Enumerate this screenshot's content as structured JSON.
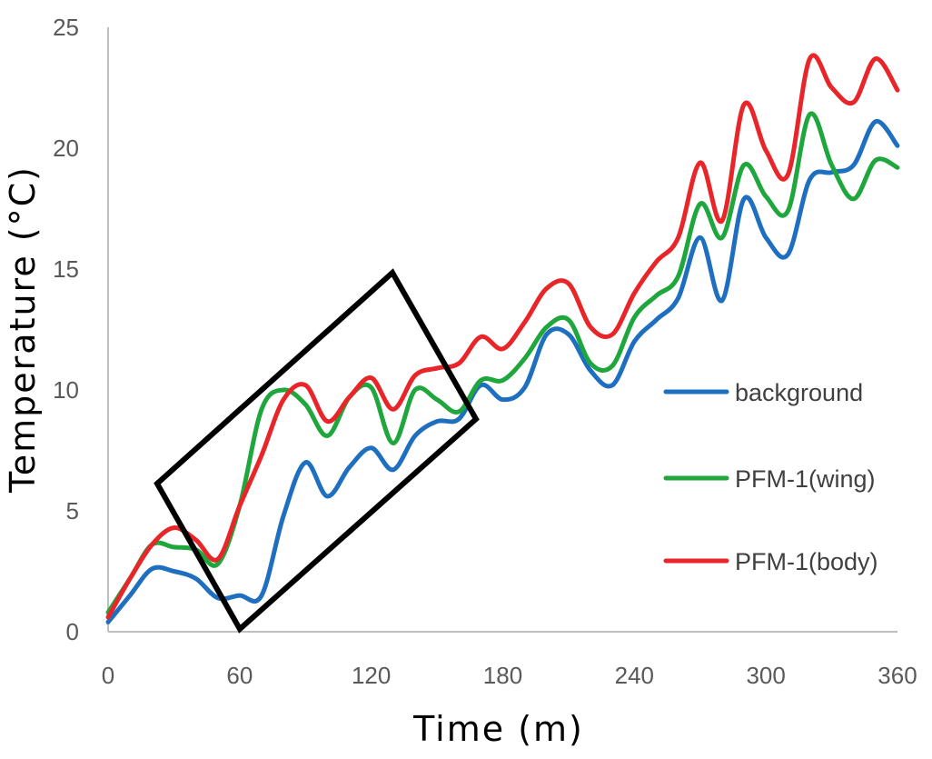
{
  "chart_data": {
    "type": "line",
    "title": "",
    "xlabel": "Time (m)",
    "ylabel": "Temperature (°C)",
    "xlim": [
      0,
      360
    ],
    "ylim": [
      0,
      25
    ],
    "x_ticks": [
      0,
      60,
      120,
      180,
      240,
      300,
      360
    ],
    "y_ticks": [
      0,
      5,
      10,
      15,
      20,
      25
    ],
    "grid": false,
    "legend_position": "right",
    "series": [
      {
        "name": "background",
        "color": "#1f6fc0",
        "points": [
          [
            0,
            0.4
          ],
          [
            10,
            1.5
          ],
          [
            20,
            2.6
          ],
          [
            30,
            2.5
          ],
          [
            40,
            2.2
          ],
          [
            50,
            1.4
          ],
          [
            60,
            1.5
          ],
          [
            70,
            1.5
          ],
          [
            80,
            4.8
          ],
          [
            90,
            7.0
          ],
          [
            100,
            5.6
          ],
          [
            110,
            6.8
          ],
          [
            120,
            7.6
          ],
          [
            130,
            6.7
          ],
          [
            140,
            8.1
          ],
          [
            150,
            8.7
          ],
          [
            160,
            8.8
          ],
          [
            170,
            10.2
          ],
          [
            180,
            9.6
          ],
          [
            190,
            10.1
          ],
          [
            200,
            12.3
          ],
          [
            210,
            12.3
          ],
          [
            220,
            10.8
          ],
          [
            230,
            10.2
          ],
          [
            240,
            12.0
          ],
          [
            250,
            12.9
          ],
          [
            260,
            13.8
          ],
          [
            270,
            16.3
          ],
          [
            280,
            13.7
          ],
          [
            290,
            17.9
          ],
          [
            300,
            16.3
          ],
          [
            310,
            15.6
          ],
          [
            320,
            18.7
          ],
          [
            330,
            19.0
          ],
          [
            340,
            19.3
          ],
          [
            350,
            21.1
          ],
          [
            360,
            20.1
          ]
        ]
      },
      {
        "name": "PFM-1(wing)",
        "color": "#1fa63c",
        "points": [
          [
            0,
            0.8
          ],
          [
            10,
            2.2
          ],
          [
            20,
            3.6
          ],
          [
            30,
            3.5
          ],
          [
            40,
            3.4
          ],
          [
            50,
            2.8
          ],
          [
            60,
            5.2
          ],
          [
            70,
            9.2
          ],
          [
            80,
            10.0
          ],
          [
            90,
            9.4
          ],
          [
            100,
            8.1
          ],
          [
            110,
            9.7
          ],
          [
            120,
            10.1
          ],
          [
            130,
            7.8
          ],
          [
            140,
            10.0
          ],
          [
            150,
            9.6
          ],
          [
            160,
            9.1
          ],
          [
            170,
            10.4
          ],
          [
            180,
            10.4
          ],
          [
            190,
            11.3
          ],
          [
            200,
            12.6
          ],
          [
            210,
            12.9
          ],
          [
            220,
            11.1
          ],
          [
            230,
            11.0
          ],
          [
            240,
            13.0
          ],
          [
            250,
            13.9
          ],
          [
            260,
            14.7
          ],
          [
            270,
            17.7
          ],
          [
            280,
            16.3
          ],
          [
            290,
            19.3
          ],
          [
            300,
            18.0
          ],
          [
            310,
            17.4
          ],
          [
            320,
            21.4
          ],
          [
            330,
            19.3
          ],
          [
            340,
            17.9
          ],
          [
            350,
            19.5
          ],
          [
            360,
            19.2
          ]
        ]
      },
      {
        "name": "PFM-1(body)",
        "color": "#e8262a",
        "points": [
          [
            0,
            0.6
          ],
          [
            10,
            2.2
          ],
          [
            20,
            3.6
          ],
          [
            30,
            4.3
          ],
          [
            40,
            3.8
          ],
          [
            50,
            3.0
          ],
          [
            60,
            5.2
          ],
          [
            70,
            7.3
          ],
          [
            80,
            9.6
          ],
          [
            90,
            10.2
          ],
          [
            100,
            8.7
          ],
          [
            110,
            9.7
          ],
          [
            120,
            10.5
          ],
          [
            130,
            9.2
          ],
          [
            140,
            10.6
          ],
          [
            150,
            10.9
          ],
          [
            160,
            11.1
          ],
          [
            170,
            12.2
          ],
          [
            180,
            11.7
          ],
          [
            190,
            12.8
          ],
          [
            200,
            14.2
          ],
          [
            210,
            14.4
          ],
          [
            220,
            12.6
          ],
          [
            230,
            12.3
          ],
          [
            240,
            14.0
          ],
          [
            250,
            15.3
          ],
          [
            260,
            16.3
          ],
          [
            270,
            19.4
          ],
          [
            280,
            17.0
          ],
          [
            290,
            21.8
          ],
          [
            300,
            19.9
          ],
          [
            310,
            18.9
          ],
          [
            320,
            23.7
          ],
          [
            330,
            22.5
          ],
          [
            340,
            21.9
          ],
          [
            350,
            23.7
          ],
          [
            360,
            22.4
          ]
        ]
      }
    ]
  }
}
